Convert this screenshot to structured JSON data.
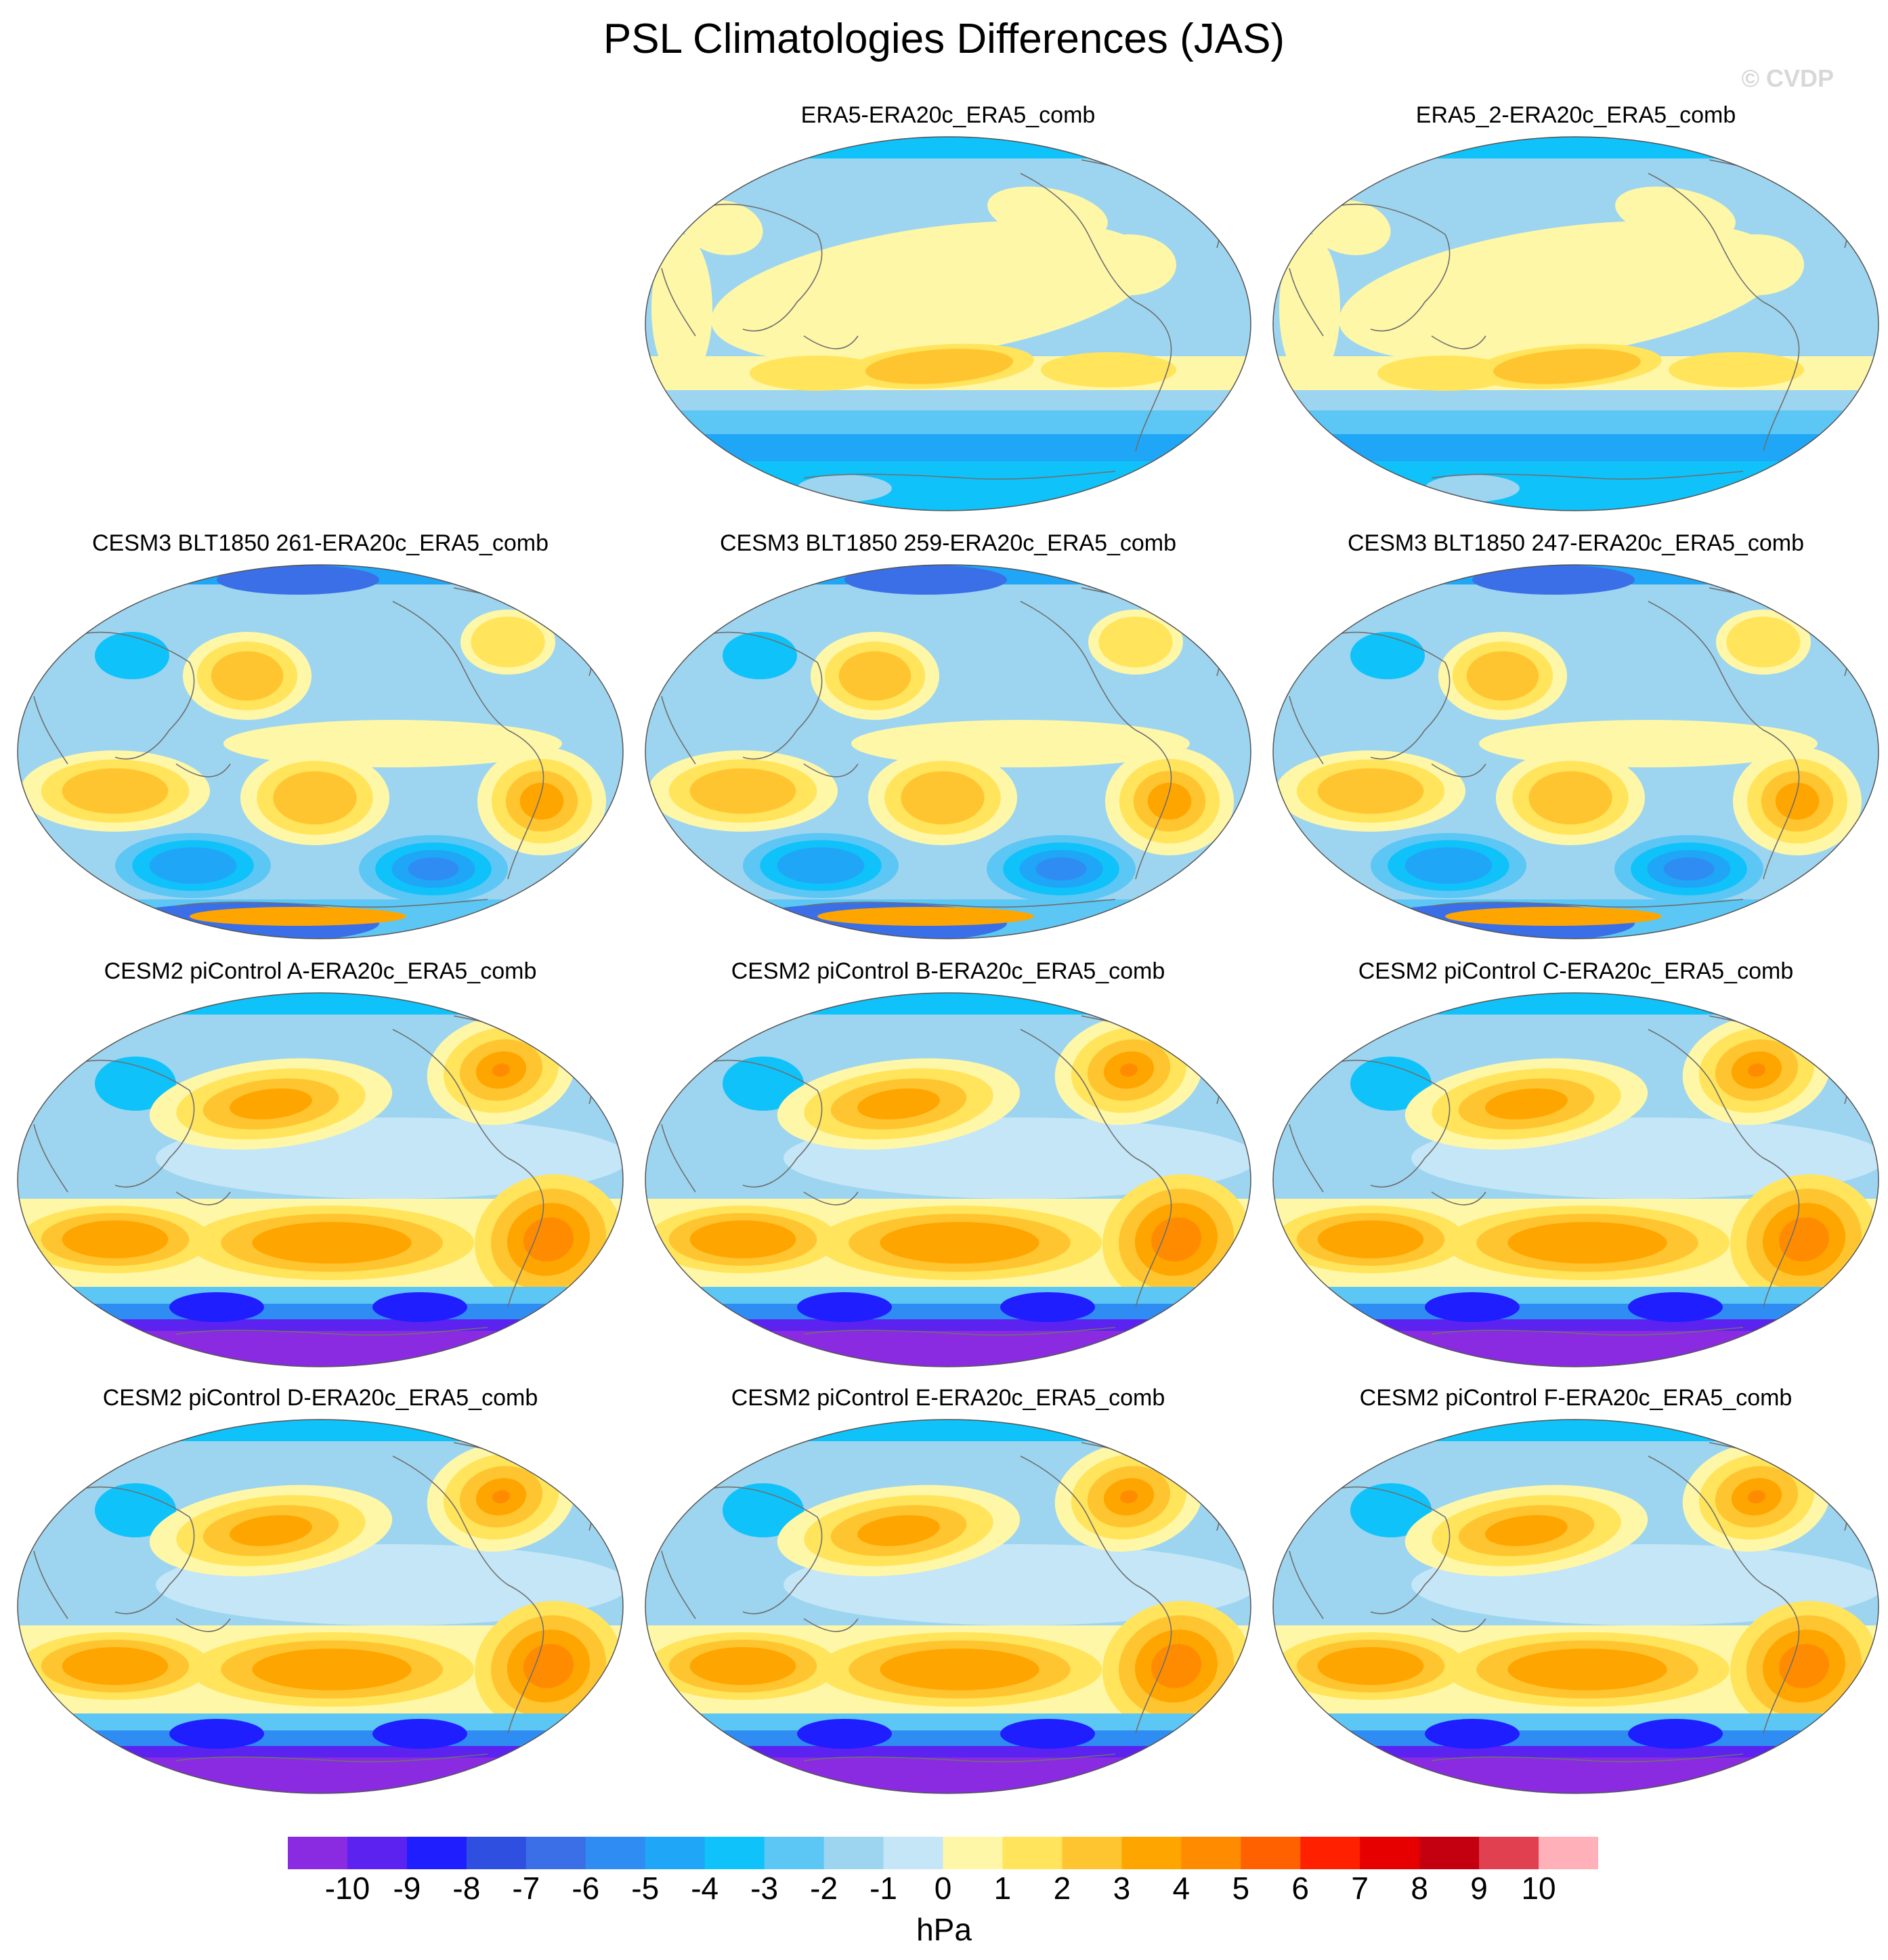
{
  "title": "PSL Climatologies Differences (JAS)",
  "watermark": "© CVDP",
  "chart_data": {
    "type": "heatmap",
    "projection": "Robinson (global, Pacific-centered)",
    "variable": "PSL difference",
    "season": "JAS",
    "units": "hPa",
    "levels": [
      -10,
      -9,
      -8,
      -7,
      -6,
      -5,
      -4,
      -3,
      -2,
      -1,
      0,
      1,
      2,
      3,
      4,
      5,
      6,
      7,
      8,
      9,
      10
    ],
    "colors": [
      "#8a2be2",
      "#5b22f0",
      "#1e1eff",
      "#2e4fe0",
      "#3a6fe8",
      "#2f8cf2",
      "#1fa6f7",
      "#0fc2f9",
      "#5cc6f4",
      "#9dd5f0",
      "#c5e6f7",
      "#fff7a8",
      "#ffe45c",
      "#ffc531",
      "#ffa500",
      "#ff8c00",
      "#ff6000",
      "#ff2000",
      "#e60000",
      "#c40010",
      "#e04050",
      "#ffb0b8"
    ],
    "panels": [
      {
        "title": "ERA5-ERA20c_ERA5_comb",
        "pattern": "reanalysis"
      },
      {
        "title": "ERA5_2-ERA20c_ERA5_comb",
        "pattern": "reanalysis"
      },
      {
        "title": "CESM3 BLT1850 261-ERA20c_ERA5_comb",
        "pattern": "cesm3"
      },
      {
        "title": "CESM3 BLT1850 259-ERA20c_ERA5_comb",
        "pattern": "cesm3"
      },
      {
        "title": "CESM3 BLT1850 247-ERA20c_ERA5_comb",
        "pattern": "cesm3"
      },
      {
        "title": "CESM2 piControl A-ERA20c_ERA5_comb",
        "pattern": "cesm2"
      },
      {
        "title": "CESM2 piControl B-ERA20c_ERA5_comb",
        "pattern": "cesm2"
      },
      {
        "title": "CESM2 piControl C-ERA20c_ERA5_comb",
        "pattern": "cesm2"
      },
      {
        "title": "CESM2 piControl D-ERA20c_ERA5_comb",
        "pattern": "cesm2"
      },
      {
        "title": "CESM2 piControl E-ERA20c_ERA5_comb",
        "pattern": "cesm2"
      },
      {
        "title": "CESM2 piControl F-ERA20c_ERA5_comb",
        "pattern": "cesm2"
      }
    ]
  }
}
